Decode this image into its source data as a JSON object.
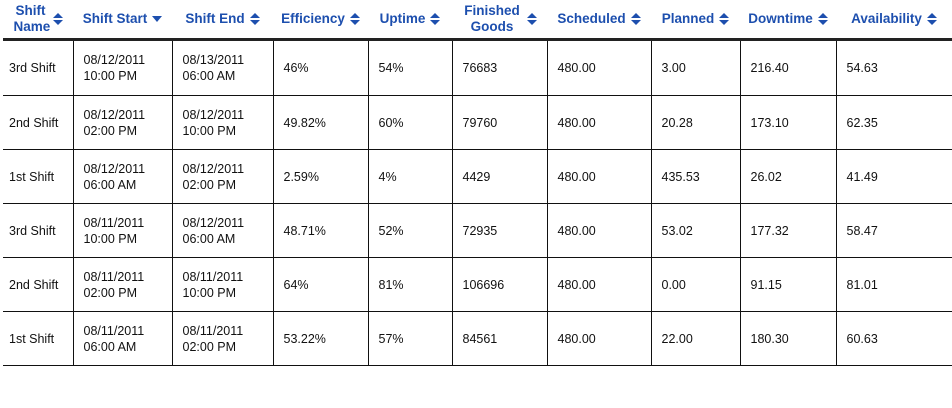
{
  "table": {
    "headers": [
      {
        "label": "Shift Name",
        "sort": "both"
      },
      {
        "label": "Shift Start",
        "sort": "desc"
      },
      {
        "label": "Shift End",
        "sort": "both"
      },
      {
        "label": "Efficiency",
        "sort": "both"
      },
      {
        "label": "Uptime",
        "sort": "both"
      },
      {
        "label": "Finished Goods",
        "sort": "both"
      },
      {
        "label": "Scheduled",
        "sort": "both"
      },
      {
        "label": "Planned",
        "sort": "both"
      },
      {
        "label": "Downtime",
        "sort": "both"
      },
      {
        "label": "Availability",
        "sort": "both"
      }
    ],
    "rows": [
      [
        "3rd Shift",
        "08/12/2011 10:00 PM",
        "08/13/2011 06:00 AM",
        "46%",
        "54%",
        "76683",
        "480.00",
        "3.00",
        "216.40",
        "54.63"
      ],
      [
        "2nd Shift",
        "08/12/2011 02:00 PM",
        "08/12/2011 10:00 PM",
        "49.82%",
        "60%",
        "79760",
        "480.00",
        "20.28",
        "173.10",
        "62.35"
      ],
      [
        "1st Shift",
        "08/12/2011 06:00 AM",
        "08/12/2011 02:00 PM",
        "2.59%",
        "4%",
        "4429",
        "480.00",
        "435.53",
        "26.02",
        "41.49"
      ],
      [
        "3rd Shift",
        "08/11/2011 10:00 PM",
        "08/12/2011 06:00 AM",
        "48.71%",
        "52%",
        "72935",
        "480.00",
        "53.02",
        "177.32",
        "58.47"
      ],
      [
        "2nd Shift",
        "08/11/2011 02:00 PM",
        "08/11/2011 10:00 PM",
        "64%",
        "81%",
        "106696",
        "480.00",
        "0.00",
        "91.15",
        "81.01"
      ],
      [
        "1st Shift",
        "08/11/2011 06:00 AM",
        "08/11/2011 02:00 PM",
        "53.22%",
        "57%",
        "84561",
        "480.00",
        "22.00",
        "180.30",
        "60.63"
      ]
    ]
  },
  "colors": {
    "header_text": "#1d4fae",
    "border": "#111111"
  }
}
